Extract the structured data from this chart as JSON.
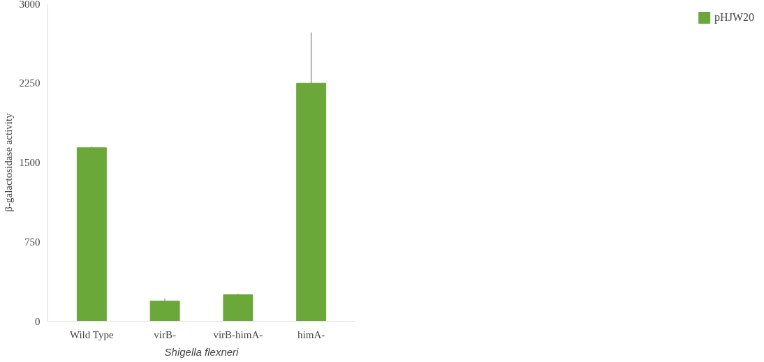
{
  "chart_data": {
    "type": "bar",
    "xlabel": "Shigella flexneri",
    "ylabel": "β-galactosidase activity",
    "categories": [
      "Wild Type",
      "virB-",
      "virB-himA-",
      "himA-"
    ],
    "series": [
      {
        "name": "pHJW20",
        "color": "#6aa83a",
        "values": [
          1640,
          190,
          250,
          2250
        ],
        "errors": [
          10,
          25,
          10,
          480
        ]
      }
    ],
    "ylim": [
      0,
      3000
    ],
    "yticks": [
      0,
      750,
      1500,
      2250,
      3000
    ],
    "grid": false,
    "legend": "right"
  }
}
